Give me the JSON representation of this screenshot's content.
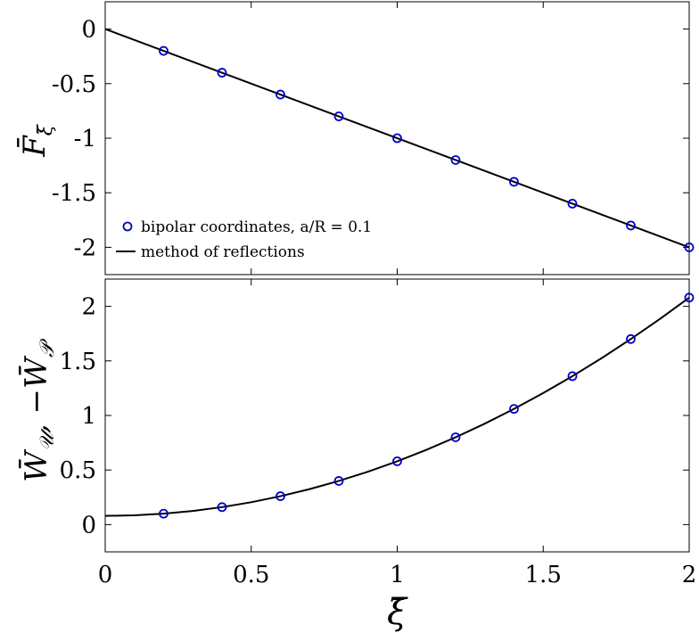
{
  "chart_data": [
    {
      "type": "line",
      "ylabel": "F̄ξ̄",
      "xlim": [
        0,
        2
      ],
      "ylim": [
        -2.25,
        0.25
      ],
      "yticks": [
        0,
        -0.5,
        -1,
        -1.5,
        -2
      ],
      "ytick_labels": [
        "0",
        "-0.5",
        "-1",
        "-1.5",
        "-2"
      ],
      "legend": {
        "placement": "bottom-left",
        "entries": [
          "bipolar coordinates, a/R = 0.1",
          "method of reflections"
        ]
      },
      "series": [
        {
          "name": "bipolar coordinates, a/R = 0.1",
          "kind": "scatter",
          "color": "#0000cc",
          "x": [
            0.2,
            0.4,
            0.6,
            0.8,
            1.0,
            1.2,
            1.4,
            1.6,
            1.8,
            2.0
          ],
          "y": [
            -0.2,
            -0.4,
            -0.6,
            -0.8,
            -1.0,
            -1.2,
            -1.4,
            -1.6,
            -1.8,
            -2.0
          ]
        },
        {
          "name": "method of reflections",
          "kind": "line",
          "color": "#000000",
          "x": [
            0,
            2.0
          ],
          "y": [
            0,
            -2.0
          ]
        }
      ]
    },
    {
      "type": "line",
      "ylabel": "W̄𝒰, −W̄𝒫",
      "xlabel": "ξ̄",
      "xlim": [
        0,
        2
      ],
      "ylim": [
        -0.25,
        2.25
      ],
      "yticks": [
        0,
        0.5,
        1,
        1.5,
        2
      ],
      "ytick_labels": [
        "0",
        "0.5",
        "1",
        "1.5",
        "2"
      ],
      "xticks": [
        0,
        0.5,
        1,
        1.5,
        2
      ],
      "xtick_labels": [
        "0",
        "0.5",
        "1",
        "1.5",
        "2"
      ],
      "series": [
        {
          "name": "bipolar coordinates, a/R = 0.1",
          "kind": "scatter",
          "color": "#0000cc",
          "x": [
            0.2,
            0.4,
            0.6,
            0.8,
            1.0,
            1.2,
            1.4,
            1.6,
            1.8,
            2.0
          ],
          "y": [
            0.1,
            0.16,
            0.26,
            0.4,
            0.58,
            0.8,
            1.06,
            1.36,
            1.7,
            2.08
          ]
        },
        {
          "name": "method of reflections",
          "kind": "line",
          "color": "#000000",
          "x": [
            0,
            0.1,
            0.2,
            0.3,
            0.4,
            0.5,
            0.6,
            0.7,
            0.8,
            0.9,
            1.0,
            1.1,
            1.2,
            1.3,
            1.4,
            1.5,
            1.6,
            1.7,
            1.8,
            1.9,
            2.0
          ],
          "y": [
            0.08,
            0.085,
            0.1,
            0.125,
            0.16,
            0.205,
            0.26,
            0.325,
            0.4,
            0.485,
            0.58,
            0.685,
            0.8,
            0.925,
            1.06,
            1.205,
            1.36,
            1.525,
            1.7,
            1.885,
            2.08
          ]
        }
      ]
    }
  ]
}
